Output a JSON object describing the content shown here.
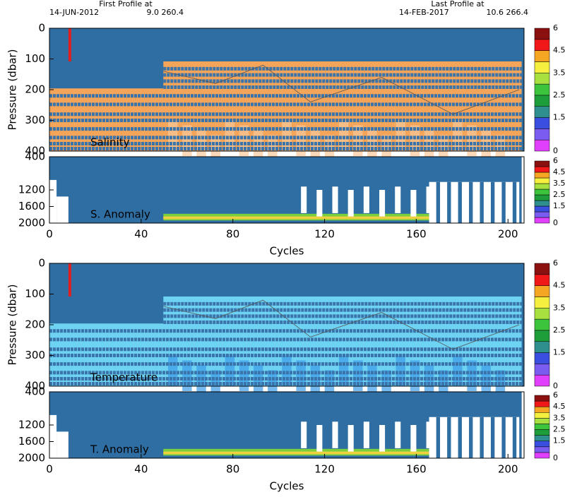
{
  "header": {
    "first": {
      "title": "First Profile at",
      "date": "14-JUN-2012",
      "position": "9.0 260.4"
    },
    "last": {
      "title": "Last Profile at",
      "date": "14-FEB-2017",
      "position": "10.6 266.4"
    }
  },
  "chart_data": [
    {
      "type": "heatmap",
      "label": "Salinity",
      "ylabel": "Pressure (dbar)",
      "xlim": [
        0,
        207
      ],
      "ylim": [
        0,
        400
      ],
      "y_reversed": true,
      "yticks": [
        0,
        100,
        200,
        300,
        400
      ],
      "colorbar": {
        "bins": [
          0,
          0.5,
          1,
          1.5,
          2,
          2.5,
          3,
          3.5,
          4,
          4.5,
          5,
          6
        ],
        "colors": [
          "#e040fb",
          "#7b5cf0",
          "#3a4fe0",
          "#2f8f8f",
          "#1e9e3a",
          "#3cc43c",
          "#a8e040",
          "#f5f040",
          "#f5a623",
          "#f01818",
          "#8b1010"
        ],
        "ticks": [
          0,
          1.5,
          2.5,
          3.5,
          4.5,
          6
        ]
      }
    },
    {
      "type": "heatmap",
      "label": "S. Anomaly",
      "xlabel": "Cycles",
      "xlim": [
        0,
        207
      ],
      "xticks": [
        0,
        40,
        80,
        120,
        160,
        200
      ],
      "ylim": [
        400,
        2000
      ],
      "y_reversed": true,
      "yticks": [
        400,
        1200,
        1600,
        2000
      ],
      "colorbar": {
        "bins": [
          0,
          0.5,
          1,
          1.5,
          2,
          2.5,
          3,
          3.5,
          4,
          4.5,
          5,
          6
        ],
        "colors": [
          "#e040fb",
          "#7b5cf0",
          "#3a4fe0",
          "#2f8f8f",
          "#1e9e3a",
          "#3cc43c",
          "#a8e040",
          "#f5f040",
          "#f5a623",
          "#f01818",
          "#8b1010"
        ],
        "ticks": [
          0,
          1.5,
          2.5,
          3.5,
          4.5,
          6
        ]
      }
    },
    {
      "type": "heatmap",
      "label": "Temperature",
      "ylabel": "Pressure (dbar)",
      "xlim": [
        0,
        207
      ],
      "ylim": [
        0,
        400
      ],
      "y_reversed": true,
      "yticks": [
        0,
        100,
        200,
        300,
        400
      ],
      "colorbar": {
        "bins": [
          0,
          0.5,
          1,
          1.5,
          2,
          2.5,
          3,
          3.5,
          4,
          4.5,
          5,
          6
        ],
        "colors": [
          "#e040fb",
          "#7b5cf0",
          "#3a4fe0",
          "#2f8f8f",
          "#1e9e3a",
          "#3cc43c",
          "#a8e040",
          "#f5f040",
          "#f5a623",
          "#f01818",
          "#8b1010"
        ],
        "ticks": [
          0,
          1.5,
          2.5,
          3.5,
          4.5,
          6
        ]
      }
    },
    {
      "type": "heatmap",
      "label": "T. Anomaly",
      "xlabel": "Cycles",
      "xlim": [
        0,
        207
      ],
      "xticks": [
        0,
        40,
        80,
        120,
        160,
        200
      ],
      "ylim": [
        400,
        2000
      ],
      "y_reversed": true,
      "yticks": [
        400,
        1200,
        1600,
        2000
      ],
      "colorbar": {
        "bins": [
          0,
          0.5,
          1,
          1.5,
          2,
          2.5,
          3,
          3.5,
          4,
          4.5,
          5,
          6
        ],
        "colors": [
          "#e040fb",
          "#7b5cf0",
          "#3a4fe0",
          "#2f8f8f",
          "#1e9e3a",
          "#3cc43c",
          "#a8e040",
          "#f5f040",
          "#f5a623",
          "#f01818",
          "#8b1010"
        ],
        "ticks": [
          0,
          1.5,
          2.5,
          3.5,
          4.5,
          6
        ]
      }
    }
  ]
}
